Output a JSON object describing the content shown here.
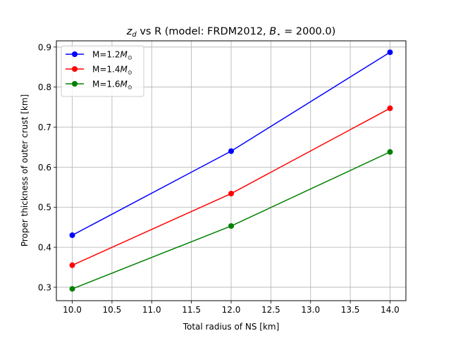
{
  "chart_data": {
    "type": "line",
    "title": {
      "main": "z",
      "sub": "d",
      "rest": " vs R (model: FRDM2012, ",
      "bvar": "B",
      "bsub": "⋆",
      "tail": " = 2000.0)"
    },
    "xlabel": "Total radius of NS [km]",
    "ylabel": "Proper thickness of outer crust [km]",
    "xlim": [
      9.8,
      14.2
    ],
    "ylim": [
      0.2665,
      0.9155
    ],
    "xticks": [
      10.0,
      10.5,
      11.0,
      11.5,
      12.0,
      12.5,
      13.0,
      13.5,
      14.0
    ],
    "xtick_labels": [
      "10.0",
      "10.5",
      "11.0",
      "11.5",
      "12.0",
      "12.5",
      "13.0",
      "13.5",
      "14.0"
    ],
    "yticks": [
      0.3,
      0.4,
      0.5,
      0.6,
      0.7,
      0.8,
      0.9
    ],
    "ytick_labels": [
      "0.3",
      "0.4",
      "0.5",
      "0.6",
      "0.7",
      "0.8",
      "0.9"
    ],
    "grid": true,
    "legend_position": "top-left",
    "x": [
      10.0,
      12.0,
      14.0
    ],
    "series": [
      {
        "name": "M=1.2",
        "unit": "M",
        "unit_sub": "⊙",
        "color": "#0000ff",
        "values": [
          0.43,
          0.64,
          0.887
        ]
      },
      {
        "name": "M=1.4",
        "unit": "M",
        "unit_sub": "⊙",
        "color": "#ff0000",
        "values": [
          0.355,
          0.534,
          0.747
        ]
      },
      {
        "name": "M=1.6",
        "unit": "M",
        "unit_sub": "⊙",
        "color": "#008000",
        "values": [
          0.296,
          0.453,
          0.638
        ]
      }
    ]
  }
}
